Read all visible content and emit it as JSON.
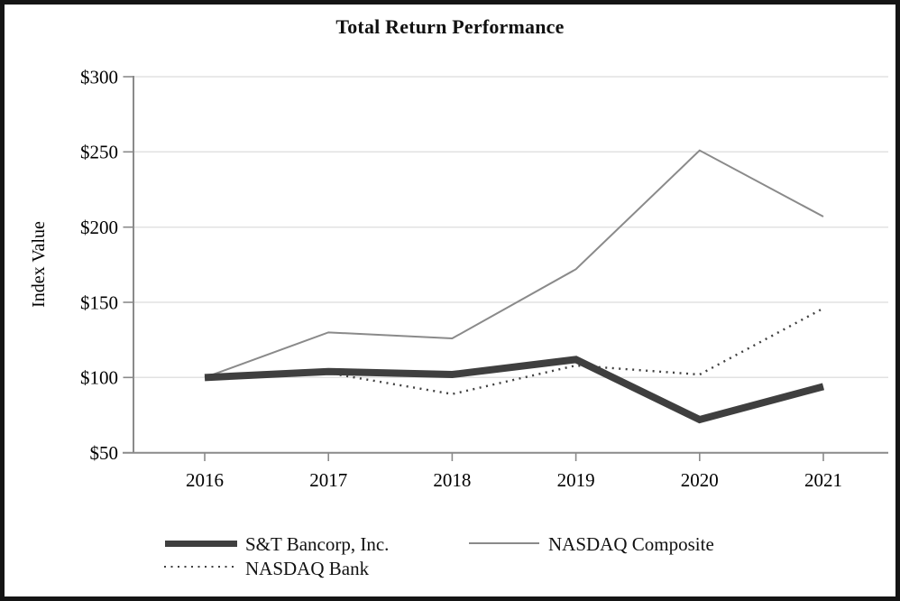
{
  "window": {
    "title": "Total Return Performance"
  },
  "chart_data": {
    "type": "line",
    "title": "Total Return Performance",
    "xlabel": "",
    "ylabel": "Index Value",
    "ylim": [
      50,
      300
    ],
    "ytick_step": 50,
    "currency_prefix": "$",
    "grid": "horizontal-light",
    "legend_position": "bottom-left",
    "categories": [
      "2016",
      "2017",
      "2018",
      "2019",
      "2020",
      "2021"
    ],
    "ytick_labels": [
      "$300",
      "$250",
      "$200",
      "$150",
      "$100",
      "$50"
    ],
    "series": [
      {
        "name": "S&T Bancorp, Inc.",
        "values": [
          100,
          104,
          102,
          112,
          72,
          94
        ],
        "style": "thick-solid",
        "color": "#3f3f3f"
      },
      {
        "name": "NASDAQ Composite",
        "values": [
          100,
          130,
          126,
          172,
          251,
          207
        ],
        "style": "thin-solid",
        "color": "#8a8a8a"
      },
      {
        "name": "NASDAQ Bank",
        "values": [
          100,
          103,
          89,
          108,
          102,
          146
        ],
        "style": "dotted",
        "color": "#3f3f3f"
      }
    ],
    "colors": {
      "grid": "#e2e2e2",
      "axis": "#8a8a8a",
      "text": "#000000",
      "border": "#151515"
    }
  }
}
